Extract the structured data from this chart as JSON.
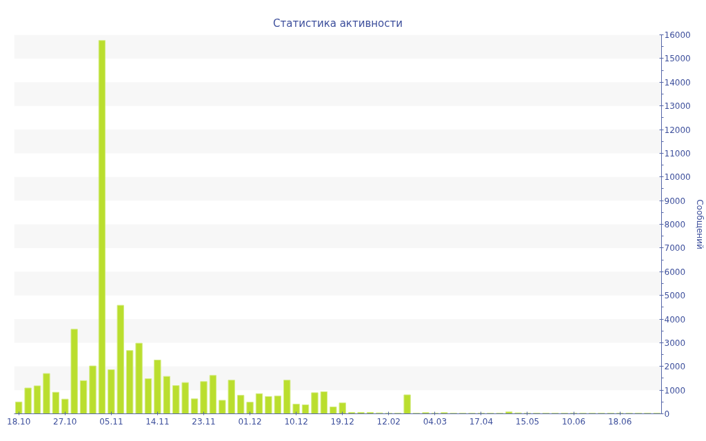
{
  "chart_data": {
    "type": "bar",
    "title": "Статистика активности",
    "ylabel": "Сообщений",
    "categories": [
      "18.10",
      null,
      null,
      null,
      null,
      "27.10",
      null,
      null,
      null,
      null,
      "05.11",
      null,
      null,
      null,
      null,
      "14.11",
      null,
      null,
      null,
      null,
      "23.11",
      null,
      null,
      null,
      null,
      "01.12",
      null,
      null,
      null,
      null,
      "10.12",
      null,
      null,
      null,
      null,
      "19.12",
      null,
      null,
      null,
      null,
      "12.02",
      null,
      null,
      null,
      null,
      "04.03",
      null,
      null,
      null,
      null,
      "17.04",
      null,
      null,
      null,
      null,
      "15.05",
      null,
      null,
      null,
      null,
      "10.06",
      null,
      null,
      null,
      null,
      "18.06",
      null,
      null,
      null,
      null
    ],
    "values": [
      500,
      1090,
      1180,
      1700,
      910,
      620,
      3570,
      1400,
      2020,
      15760,
      1860,
      4580,
      2670,
      2980,
      1480,
      2270,
      1580,
      1190,
      1320,
      630,
      1360,
      1620,
      570,
      1420,
      780,
      490,
      850,
      730,
      750,
      1420,
      410,
      380,
      890,
      930,
      290,
      460,
      60,
      60,
      60,
      40,
      30,
      30,
      800,
      30,
      50,
      30,
      50,
      30,
      30,
      30,
      30,
      30,
      30,
      80,
      40,
      30,
      30,
      30,
      30,
      30,
      30,
      30,
      30,
      30,
      30,
      30,
      30,
      30,
      30,
      30
    ],
    "color": "#bade2e",
    "ylim": [
      0,
      16000
    ],
    "yticks": [
      0,
      {
        "value": 500,
        "label": null
      },
      1000,
      {
        "value": 1500,
        "label": null
      },
      2000,
      {
        "value": 2500,
        "label": null
      },
      3000,
      {
        "value": 3500,
        "label": null
      },
      4000,
      {
        "value": 4500,
        "label": null
      },
      5000,
      {
        "value": 5500,
        "label": null
      },
      6000,
      {
        "value": 6500,
        "label": null
      },
      7000,
      {
        "value": 7500,
        "label": null
      },
      8000,
      {
        "value": 8500,
        "label": null
      },
      9000,
      {
        "value": 9500,
        "label": null
      },
      10000,
      {
        "value": 10500,
        "label": null
      },
      11000,
      {
        "value": 11500,
        "label": null
      },
      12000,
      {
        "value": 12500,
        "label": null
      },
      13000,
      {
        "value": 13500,
        "label": null
      },
      14000,
      {
        "value": 14500,
        "label": null
      },
      15000,
      {
        "value": 15500,
        "label": null
      },
      16000
    ],
    "bands": [
      {
        "axis": "y",
        "from": 1000,
        "to": 2000,
        "color": "#f7f7f7"
      },
      {
        "axis": "y",
        "from": 3000,
        "to": 4000,
        "color": "#f7f7f7"
      },
      {
        "axis": "y",
        "from": 5000,
        "to": 6000,
        "color": "#f7f7f7"
      },
      {
        "axis": "y",
        "from": 7000,
        "to": 8000,
        "color": "#f7f7f7"
      },
      {
        "axis": "y",
        "from": 9000,
        "to": 10000,
        "color": "#f7f7f7"
      },
      {
        "axis": "y",
        "from": 11000,
        "to": 12000,
        "color": "#f7f7f7"
      },
      {
        "axis": "y",
        "from": 13000,
        "to": 14000,
        "color": "#f7f7f7"
      },
      {
        "axis": "y",
        "from": 15000,
        "to": 16000,
        "color": "#f7f7f7"
      }
    ]
  }
}
